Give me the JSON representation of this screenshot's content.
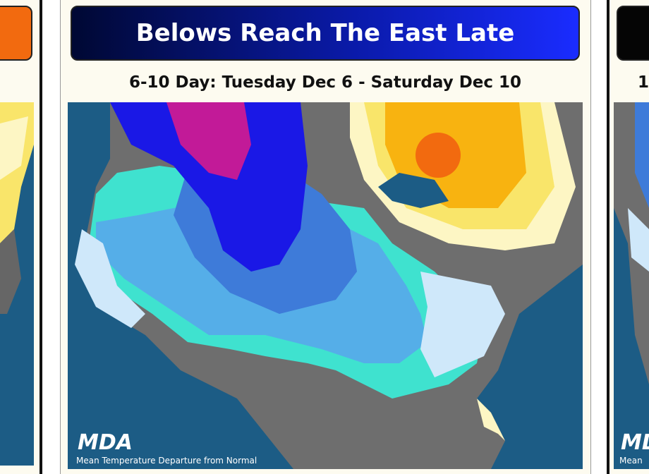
{
  "panels": [
    {
      "title": "Belows Reach The East Late",
      "subtitle": "6-10 Day: Tuesday Dec 6 - Saturday Dec 10",
      "logo": "MDA",
      "caption": "Mean Temperature Departure from Normal"
    }
  ],
  "right_panel": {
    "subtitle": "1",
    "logo": "MDA",
    "caption": "Mean"
  }
}
